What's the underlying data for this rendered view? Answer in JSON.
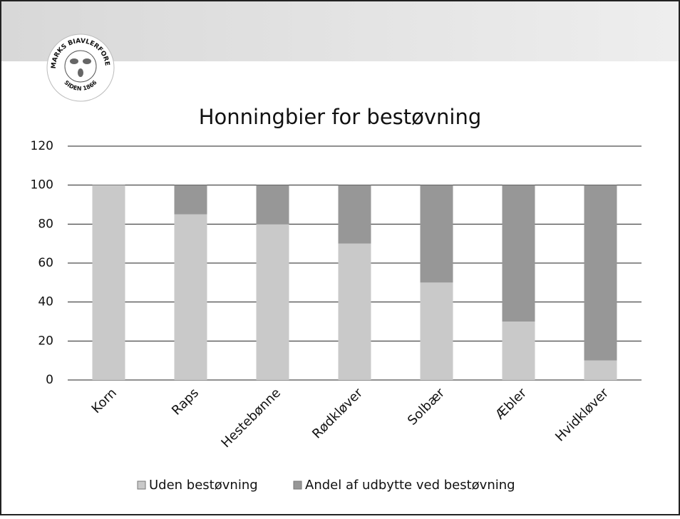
{
  "logo": {
    "name": "DANMARKS BIAVLERFORENING",
    "since": "SIDEN 1866"
  },
  "chart_data": {
    "type": "stacked_bar",
    "title": "Honningbier for bestøvning",
    "categories": [
      "Korn",
      "Raps",
      "Hestebønne",
      "Rødkløver",
      "Solbær",
      "Æbler",
      "Hvidkløver"
    ],
    "series": [
      {
        "name": "Uden bestøvning",
        "color": "#c9c9c9",
        "values": [
          100,
          85,
          80,
          70,
          50,
          30,
          10
        ]
      },
      {
        "name": "Andel af udbytte ved bestøvning",
        "color": "#979797",
        "values": [
          0,
          15,
          20,
          30,
          50,
          70,
          90
        ]
      }
    ],
    "ylim": [
      0,
      120
    ],
    "yticks": [
      0,
      20,
      40,
      60,
      80,
      100,
      120
    ],
    "grid": true,
    "legend": "bottom"
  }
}
